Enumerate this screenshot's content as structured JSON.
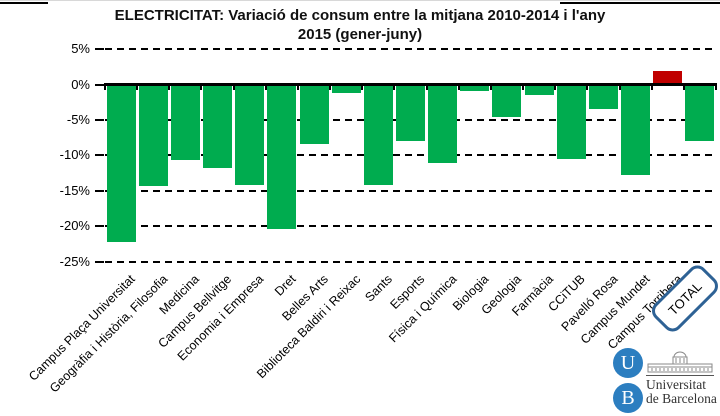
{
  "title": {
    "line1": "ELECTRICITAT: Variació de consum entre la mitjana 2010-2014 i l'any",
    "line2": "2015 (gener-juny)"
  },
  "chart_data": {
    "type": "bar",
    "title": "ELECTRICITAT: Variació de consum entre la mitjana 2010-2014 i l'any 2015 (gener-juny)",
    "categories": [
      "Campus Plaça Universitat",
      "Geogràfia i Història, Filosofia",
      "Medicina",
      "Campus Bellvitge",
      "Economia i Empresa",
      "Dret",
      "Belles Arts",
      "Biblioteca Baldiri i Reixac",
      "Sants",
      "Esports",
      "Física i Química",
      "Biologia",
      "Geologia",
      "Farmàcia",
      "CCiTUB",
      "Pavelló Rosa",
      "Campus Mundet",
      "Campus Torribera",
      "TOTAL"
    ],
    "values": [
      -22.1,
      -14.2,
      -10.5,
      -11.6,
      -14.0,
      -20.3,
      -8.2,
      -1.0,
      -14.1,
      -7.8,
      -11.0,
      -0.8,
      -4.5,
      -1.4,
      -10.4,
      -3.3,
      -12.6,
      1.7,
      -7.8
    ],
    "unit": "%",
    "y_ticks": [
      {
        "label": "5%",
        "value": 5
      },
      {
        "label": "0%",
        "value": 0
      },
      {
        "label": "-5%",
        "value": -5
      },
      {
        "label": "-10%",
        "value": -10
      },
      {
        "label": "-15%",
        "value": -15
      },
      {
        "label": "-20%",
        "value": -20
      },
      {
        "label": "-25%",
        "value": -25
      }
    ],
    "ylim": [
      -25,
      5
    ],
    "grid": "dashed-horizontal",
    "legend": "none",
    "negative_color": "#00AC4F",
    "positive_color": "#C00000"
  },
  "total_box": {
    "label": "TOTAL",
    "border_color": "#2E6295"
  },
  "logo": {
    "letter_top": "U",
    "letter_bottom": "B",
    "name_line1": "Universitat",
    "name_line2": "de Barcelona",
    "circle_color": "#2C7EC0"
  }
}
